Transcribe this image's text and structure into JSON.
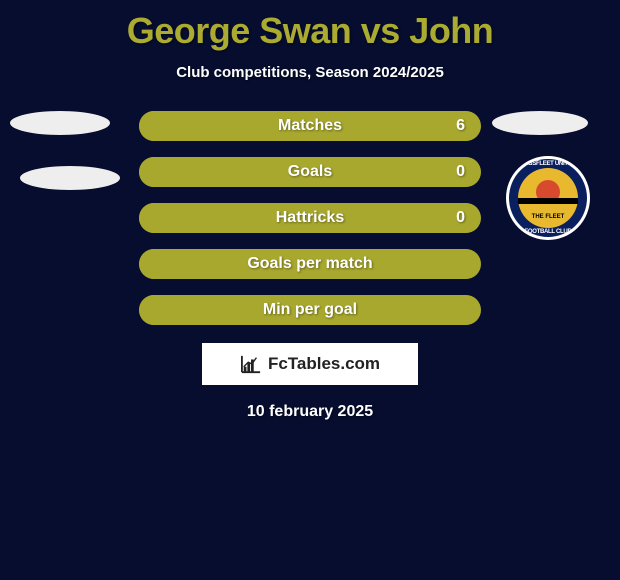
{
  "colors": {
    "background": "#060d2e",
    "title": "#abab31",
    "text_white": "#ffffff",
    "subtitle": "#ffffff",
    "bar_left": "#a8a82f",
    "bar_right": "#a8a82f",
    "stat_label": "#ffffff",
    "stat_value": "#ffffff",
    "icon_fill": "#eeeeee",
    "badge_border": "#ffffff",
    "badge_bg": "#0a1f5e",
    "badge_inner": "#e8b92e",
    "badge_ball": "#d84a2e",
    "badge_stripe": "#000000",
    "logo_border": "#ffffff",
    "logo_bg": "#ffffff",
    "logo_text": "#222222",
    "date": "#ffffff"
  },
  "title": "George Swan vs John",
  "subtitle": "Club competitions, Season 2024/2025",
  "stats": [
    {
      "label": "Matches",
      "left_width": 171,
      "right_width": 342,
      "right_value": "6",
      "show_value": true
    },
    {
      "label": "Goals",
      "left_width": 171,
      "right_width": 342,
      "right_value": "0",
      "show_value": true
    },
    {
      "label": "Hattricks",
      "left_width": 171,
      "right_width": 342,
      "right_value": "0",
      "show_value": true
    },
    {
      "label": "Goals per match",
      "left_width": 171,
      "right_width": 342,
      "right_value": "",
      "show_value": false
    },
    {
      "label": "Min per goal",
      "left_width": 171,
      "right_width": 342,
      "right_value": "",
      "show_value": false
    }
  ],
  "badge": {
    "club_top": "EBBSFLEET UNITED",
    "club_bottom": "FOOTBALL CLUB",
    "inner_text": "THE FLEET"
  },
  "logo": "FcTables.com",
  "date": "10 february 2025"
}
